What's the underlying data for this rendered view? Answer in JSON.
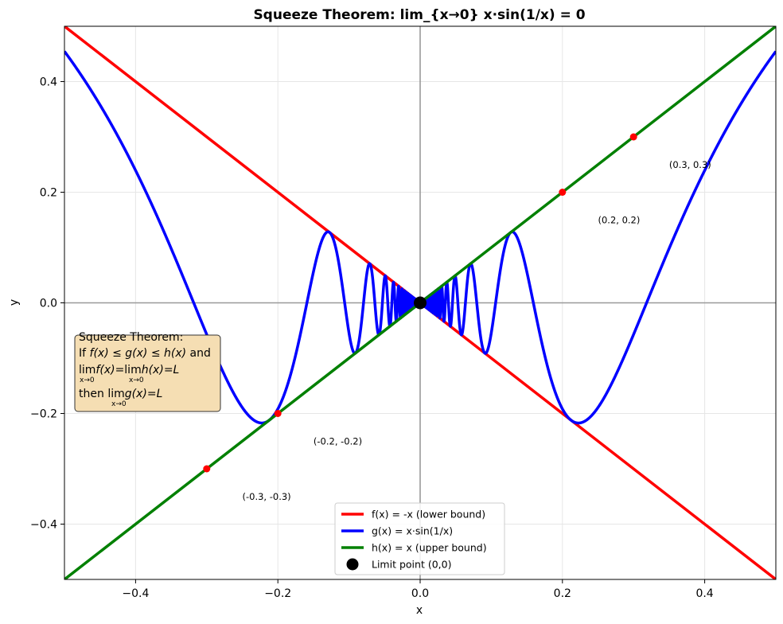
{
  "chart_data": {
    "type": "line",
    "title": "Squeeze Theorem: lim_{x→0} x·sin(1/x) = 0",
    "xlabel": "x",
    "ylabel": "y",
    "xlim": [
      -0.5,
      0.5
    ],
    "ylim": [
      -0.5,
      0.5
    ],
    "grid": true,
    "x_ticks": [
      -0.4,
      -0.2,
      0.0,
      0.2,
      0.4
    ],
    "x_tick_labels": [
      "−0.4",
      "−0.2",
      "0.0",
      "0.2",
      "0.4"
    ],
    "y_ticks": [
      -0.4,
      -0.2,
      0.0,
      0.2,
      0.4
    ],
    "y_tick_labels": [
      "−0.4",
      "−0.2",
      "0.0",
      "0.2",
      "0.4"
    ],
    "series": [
      {
        "name": "f(x) = -x (lower bound)",
        "function": "-x",
        "color": "#ff0000"
      },
      {
        "name": "g(x) = x·sin(1/x)",
        "function": "x*sin(1/x)",
        "color": "#0000ff"
      },
      {
        "name": "h(x) = x (upper bound)",
        "function": "x",
        "color": "#008000"
      }
    ],
    "limit_point": {
      "name": "Limit point (0,0)",
      "x": 0,
      "y": 0,
      "color": "#000000"
    },
    "marked_points": [
      {
        "x": -0.3,
        "y": -0.3,
        "label": "(-0.3, -0.3)"
      },
      {
        "x": -0.2,
        "y": -0.2,
        "label": "(-0.2, -0.2)"
      },
      {
        "x": 0.2,
        "y": 0.2,
        "label": "(0.2, 0.2)"
      },
      {
        "x": 0.3,
        "y": 0.3,
        "label": "(0.3, 0.3)"
      }
    ],
    "marker_color": "#ff0000",
    "legend_position": "lower-center",
    "textbox": {
      "line1": "Squeeze Theorem:",
      "line2_a": "If ",
      "line2_b": "f(x) ≤ g(x) ≤ h(x)",
      "line2_c": " and",
      "line3_a": "lim",
      "line3_b": "f(x)",
      "line3_c": "=",
      "line3_d": "lim",
      "line3_e": "h(x)",
      "line3_f": "=",
      "line3_g": "L",
      "sub": "x→0",
      "line4_a": "then ",
      "line4_b": "lim",
      "line4_c": "g(x)",
      "line4_d": "=",
      "line4_e": "L",
      "background": "#f5deb3"
    }
  }
}
